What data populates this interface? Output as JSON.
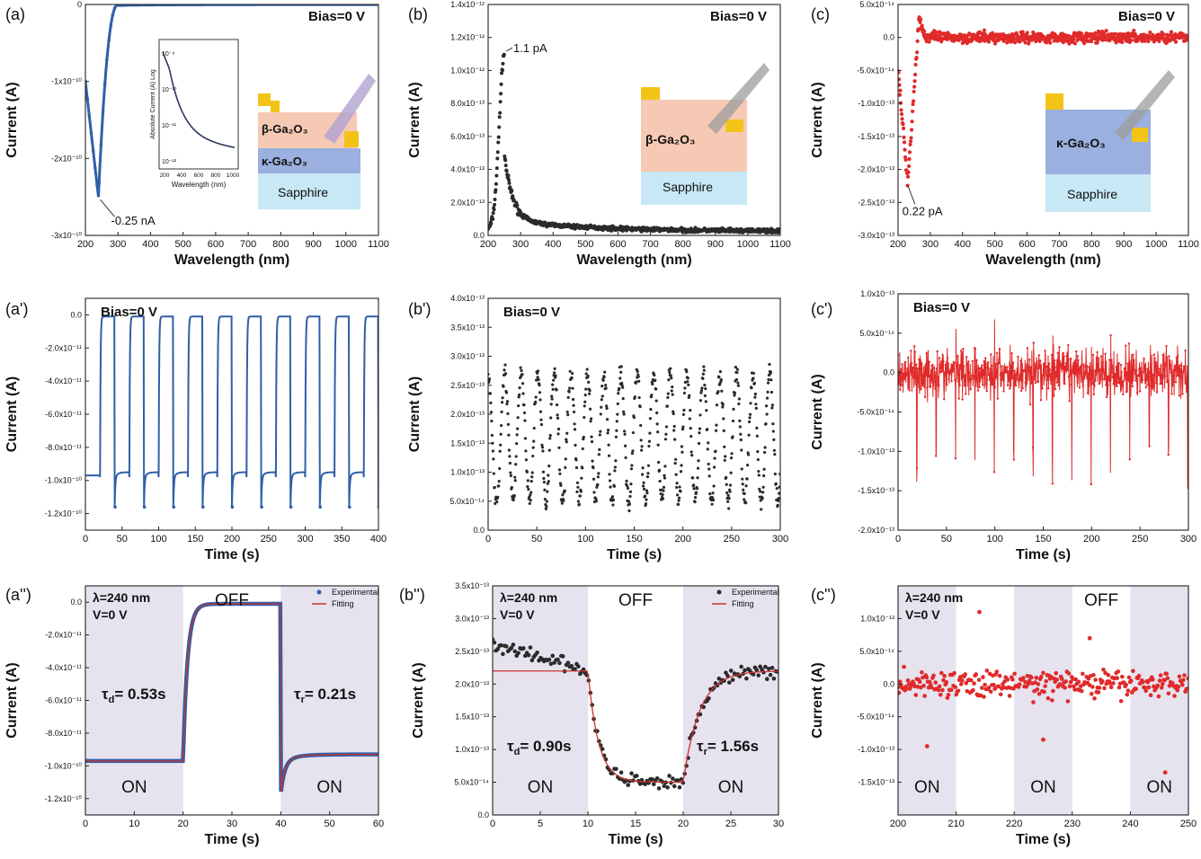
{
  "figure": {
    "description_domain": "photodetector spectral and transient photoresponse",
    "colors": {
      "blue": "#2f5fa8",
      "black": "#2b2b2b",
      "red": "#e02a2a",
      "fit": "#c8322c",
      "shade": "#e4e0ee"
    }
  },
  "chart_data": [
    {
      "id": "a",
      "panel_label": "(a)",
      "type": "line",
      "title": "Bias=0 V",
      "xlabel": "Wavelength (nm)",
      "ylabel": "Current (A)",
      "xlim": [
        200,
        1100
      ],
      "ylim": [
        -3e-10,
        0
      ],
      "xticks": [
        200,
        300,
        400,
        500,
        600,
        700,
        800,
        900,
        1000,
        1100
      ],
      "xtick_labels": [
        "200",
        "300",
        "400",
        "500",
        "600",
        "700",
        "800",
        "900",
        "1000",
        "1100"
      ],
      "yticks": [
        -3e-10,
        -2e-10,
        -1e-10,
        0
      ],
      "ytick_labels": [
        "-3x10⁻¹⁰",
        "-2x10⁻¹⁰",
        "-1x10⁻¹⁰",
        "0"
      ],
      "color": "#2f5fa8",
      "x": [
        200,
        210,
        220,
        230,
        240,
        250,
        260,
        270,
        280,
        290,
        300,
        320,
        350,
        400,
        500,
        700,
        1100
      ],
      "y": [
        -1e-10,
        -1.5e-10,
        -2e-10,
        -2.35e-10,
        -2.5e-10,
        -2.3e-10,
        -1.8e-10,
        -1.2e-10,
        -6e-11,
        -2e-11,
        -6e-12,
        -2e-12,
        -1e-12,
        -5e-13,
        -2e-13,
        -1e-13,
        -1e-13
      ],
      "annotations": [
        {
          "text": "-0.25 nA",
          "x": 240,
          "y": -2.5e-10
        }
      ],
      "structure": {
        "top": "β-Ga₂O₃",
        "middle": "κ-Ga₂O₃",
        "bottom": "Sapphire"
      },
      "inset": {
        "xlabel": "Wavelength (nm)",
        "ylabel": "Absolute Current (A) Log",
        "xticks": [
          "200",
          "400",
          "600",
          "800",
          "1000"
        ],
        "yticks": [
          "10⁻⁹",
          "10⁻¹⁰",
          "10⁻¹¹",
          "10⁻¹²"
        ]
      }
    },
    {
      "id": "b",
      "panel_label": "(b)",
      "type": "scatter",
      "title": "Bias=0 V",
      "xlabel": "Wavelength (nm)",
      "ylabel": "Current (A)",
      "xlim": [
        200,
        1100
      ],
      "ylim": [
        0,
        1.4e-12
      ],
      "xticks": [
        200,
        300,
        400,
        500,
        600,
        700,
        800,
        900,
        1000,
        1100
      ],
      "xtick_labels": [
        "200",
        "300",
        "400",
        "500",
        "600",
        "700",
        "800",
        "900",
        "1000",
        "1100"
      ],
      "yticks": [
        0,
        2e-13,
        4e-13,
        6e-13,
        8e-13,
        1e-12,
        1.2e-12,
        1.4e-12
      ],
      "ytick_labels": [
        "0.0",
        "2.0x10⁻¹³",
        "4.0x10⁻¹³",
        "6.0x10⁻¹³",
        "8.0x10⁻¹³",
        "1.0x10⁻¹²",
        "1.2x10⁻¹²",
        "1.4x10⁻¹²"
      ],
      "color": "#2b2b2b",
      "x": [
        200,
        220,
        235,
        245,
        250,
        255,
        265,
        280,
        300,
        350,
        400,
        500,
        700,
        1100
      ],
      "y": [
        4e-14,
        1.2e-13,
        4e-13,
        9e-13,
        1.1e-12,
        8e-13,
        4e-13,
        2e-13,
        1.3e-13,
        9e-14,
        6e-14,
        4e-14,
        3e-14,
        2e-14
      ],
      "annotations": [
        {
          "text": "1.1 pA",
          "x": 250,
          "y": 1.1e-12
        }
      ],
      "structure": {
        "top": "β-Ga₂O₃",
        "bottom": "Sapphire"
      }
    },
    {
      "id": "c",
      "panel_label": "(c)",
      "type": "scatter",
      "title": "Bias=0 V",
      "xlabel": "Wavelength (nm)",
      "ylabel": "Current (A)",
      "xlim": [
        200,
        1100
      ],
      "ylim": [
        -3e-13,
        5e-14
      ],
      "xticks": [
        200,
        300,
        400,
        500,
        600,
        700,
        800,
        900,
        1000,
        1100
      ],
      "xtick_labels": [
        "200",
        "300",
        "400",
        "500",
        "600",
        "700",
        "800",
        "900",
        "1000",
        "1100"
      ],
      "yticks": [
        -3e-13,
        -2.5e-13,
        -2e-13,
        -1.5e-13,
        -1e-13,
        -5e-14,
        0,
        5e-14
      ],
      "ytick_labels": [
        "-3.0x10⁻¹³",
        "-2.5x10⁻¹³",
        "-2.0x10⁻¹³",
        "-1.5x10⁻¹³",
        "-1.0x10⁻¹³",
        "-5.0x10⁻¹⁴",
        "0.0",
        "5.0x10⁻¹⁴"
      ],
      "color": "#e02a2a",
      "x": [
        200,
        210,
        220,
        230,
        240,
        250,
        260,
        270,
        280,
        300,
        400,
        700,
        1100
      ],
      "y": [
        -5e-14,
        -1e-13,
        -1.6e-13,
        -2.2e-13,
        -1.5e-13,
        -6e-14,
        0,
        3e-14,
        0,
        -1e-14,
        0,
        0,
        0
      ],
      "annotations": [
        {
          "text": "0.22 pA",
          "x": 230,
          "y": -2.2e-13
        }
      ],
      "structure": {
        "top": "κ-Ga₂O₃",
        "bottom": "Sapphire"
      }
    },
    {
      "id": "a1",
      "panel_label": "(a')",
      "type": "line",
      "title": "Bias=0 V",
      "xlabel": "Time (s)",
      "ylabel": "Current (A)",
      "xlim": [
        0,
        400
      ],
      "ylim": [
        -1.3e-10,
        1e-11
      ],
      "xticks": [
        0,
        50,
        100,
        150,
        200,
        250,
        300,
        350,
        400
      ],
      "xtick_labels": [
        "0",
        "50",
        "100",
        "150",
        "200",
        "250",
        "300",
        "350",
        "400"
      ],
      "yticks": [
        -1.2e-10,
        -1e-10,
        -8e-11,
        -6e-11,
        -4e-11,
        -2e-11,
        0
      ],
      "ytick_labels": [
        "-1.2x10⁻¹⁰",
        "-1.0x10⁻¹⁰",
        "-8.0x10⁻¹¹",
        "-6.0x10⁻¹¹",
        "-4.0x10⁻¹¹",
        "-2.0x10⁻¹¹",
        "0.0"
      ],
      "color": "#2f5fa8",
      "signal": {
        "period": 40,
        "phase": 20,
        "on_level": -9.8e-11,
        "off_level": -1e-12,
        "cycles": 10
      }
    },
    {
      "id": "b1",
      "panel_label": "(b')",
      "type": "scatter",
      "title": "Bias=0 V",
      "xlabel": "Time (s)",
      "ylabel": "Current (A)",
      "xlim": [
        0,
        300
      ],
      "ylim": [
        0,
        4e-13
      ],
      "xticks": [
        0,
        50,
        100,
        150,
        200,
        250,
        300
      ],
      "xtick_labels": [
        "0",
        "50",
        "100",
        "150",
        "200",
        "250",
        "300"
      ],
      "yticks": [
        0,
        5e-14,
        1e-13,
        1.5e-13,
        2e-13,
        2.5e-13,
        3e-13,
        3.5e-13,
        4e-13
      ],
      "ytick_labels": [
        "0.0",
        "5.0x10⁻¹⁴",
        "1.0x10⁻¹³",
        "1.5x10⁻¹³",
        "2.0x10⁻¹³",
        "2.5x10⁻¹³",
        "3.0x10⁻¹³",
        "3.5x10⁻¹³",
        "4.0x10⁻¹³"
      ],
      "color": "#2b2b2b",
      "signal": {
        "period": 17,
        "high": 2.7e-13,
        "low": 5e-14
      }
    },
    {
      "id": "c1",
      "panel_label": "(c')",
      "type": "scatter",
      "title": "Bias=0 V",
      "xlabel": "Time (s)",
      "ylabel": "Current (A)",
      "xlim": [
        0,
        300
      ],
      "ylim": [
        -2e-13,
        1e-13
      ],
      "xticks": [
        0,
        50,
        100,
        150,
        200,
        250,
        300
      ],
      "xtick_labels": [
        "0",
        "50",
        "100",
        "150",
        "200",
        "250",
        "300"
      ],
      "yticks": [
        -2e-13,
        -1.5e-13,
        -1e-13,
        -5e-14,
        0,
        5e-14,
        1e-13
      ],
      "ytick_labels": [
        "-2.0x10⁻¹³",
        "-1.5x10⁻¹³",
        "-1.0x10⁻¹³",
        "-5.0x10⁻¹⁴",
        "0.0",
        "5.0x10⁻¹⁴",
        "1.0x10⁻¹³"
      ],
      "color": "#e02a2a",
      "signal": {
        "period": 20,
        "noise": 5e-14,
        "spike": -1.5e-13
      }
    },
    {
      "id": "a2",
      "panel_label": "(a'')",
      "type": "line",
      "xlabel": "Time (s)",
      "ylabel": "Current (A)",
      "xlim": [
        0,
        60
      ],
      "ylim": [
        -1.3e-10,
        1e-11
      ],
      "xticks": [
        0,
        10,
        20,
        30,
        40,
        50,
        60
      ],
      "xtick_labels": [
        "0",
        "10",
        "20",
        "30",
        "40",
        "50",
        "60"
      ],
      "yticks": [
        -1.2e-10,
        -1e-10,
        -8e-11,
        -6e-11,
        -4e-11,
        -2e-11,
        0
      ],
      "ytick_labels": [
        "-1.2x10⁻¹⁰",
        "-1.0x10⁻¹⁰",
        "-8.0x10⁻¹¹",
        "-6.0x10⁻¹¹",
        "-4.0x10⁻¹¹",
        "-2.0x10⁻¹¹",
        "0.0"
      ],
      "color": "#2f5fa8",
      "fit_color": "#c8322c",
      "conditions": [
        "λ=240 nm",
        "V=0 V"
      ],
      "legend": [
        "Experimental",
        "Fitting"
      ],
      "regions": [
        {
          "label": "ON",
          "x0": 0,
          "x1": 20,
          "shaded": true
        },
        {
          "label": "OFF",
          "x0": 20,
          "x1": 40,
          "shaded": false
        },
        {
          "label": "ON",
          "x0": 40,
          "x1": 60,
          "shaded": true
        }
      ],
      "tau": [
        {
          "text": "τd= 0.53s",
          "sym": "τ",
          "sub": "d",
          "val": "= 0.53s"
        },
        {
          "text": "τr= 0.21s",
          "sym": "τ",
          "sub": "r",
          "val": "= 0.21s"
        }
      ],
      "on_level": -9.7e-11,
      "off_level": -1e-12
    },
    {
      "id": "b2",
      "panel_label": "(b'')",
      "type": "scatter",
      "xlabel": "Time (s)",
      "ylabel": "Current (A)",
      "xlim": [
        0,
        30
      ],
      "ylim": [
        0,
        3.5e-13
      ],
      "xticks": [
        0,
        5,
        10,
        15,
        20,
        25,
        30
      ],
      "xtick_labels": [
        "0",
        "5",
        "10",
        "15",
        "20",
        "25",
        "30"
      ],
      "yticks": [
        0,
        5e-14,
        1e-13,
        1.5e-13,
        2e-13,
        2.5e-13,
        3e-13,
        3.5e-13
      ],
      "ytick_labels": [
        "0.0",
        "5.0x10⁻¹⁴",
        "1.0x10⁻¹³",
        "1.5x10⁻¹³",
        "2.0x10⁻¹³",
        "2.5x10⁻¹³",
        "3.0x10⁻¹³",
        "3.5x10⁻¹³"
      ],
      "color": "#2b2b2b",
      "fit_color": "#c8322c",
      "conditions": [
        "λ=240 nm",
        "V=0 V"
      ],
      "legend": [
        "Experimental",
        "Fitting"
      ],
      "regions": [
        {
          "label": "ON",
          "x0": 0,
          "x1": 10,
          "shaded": true
        },
        {
          "label": "OFF",
          "x0": 10,
          "x1": 20,
          "shaded": false
        },
        {
          "label": "ON",
          "x0": 20,
          "x1": 30,
          "shaded": true
        }
      ],
      "tau": [
        {
          "sym": "τ",
          "sub": "d",
          "val": "= 0.90s"
        },
        {
          "sym": "τ",
          "sub": "r",
          "val": "= 1.56s"
        }
      ],
      "on_level": 2.2e-13,
      "off_level": 5e-14
    },
    {
      "id": "c2",
      "panel_label": "(c'')",
      "type": "scatter",
      "xlabel": "Time (s)",
      "ylabel": "Current (A)",
      "xlim": [
        200,
        250
      ],
      "ylim": [
        -2e-13,
        1.5e-13
      ],
      "xticks": [
        200,
        210,
        220,
        230,
        240,
        250
      ],
      "xtick_labels": [
        "200",
        "210",
        "220",
        "230",
        "240",
        "250"
      ],
      "yticks": [
        -1.5e-13,
        -1e-13,
        -5e-14,
        0,
        5e-14,
        1e-13
      ],
      "ytick_labels": [
        "-1.5x10⁻¹³",
        "-1.0x10⁻¹³",
        "-5.0x10⁻¹⁴",
        "0.0",
        "5.0x10⁻¹⁴",
        "1.0x10⁻¹³"
      ],
      "color": "#e02a2a",
      "conditions": [
        "λ=240 nm",
        "V=0 V"
      ],
      "regions": [
        {
          "label": "ON",
          "x0": 200,
          "x1": 210,
          "shaded": true
        },
        {
          "label": "",
          "x0": 210,
          "x1": 220,
          "shaded": false
        },
        {
          "label": "ON",
          "x0": 220,
          "x1": 230,
          "shaded": true
        },
        {
          "label": "OFF",
          "x0": 230,
          "x1": 240,
          "shaded": false
        },
        {
          "label": "ON",
          "x0": 240,
          "x1": 250,
          "shaded": true
        }
      ]
    }
  ]
}
